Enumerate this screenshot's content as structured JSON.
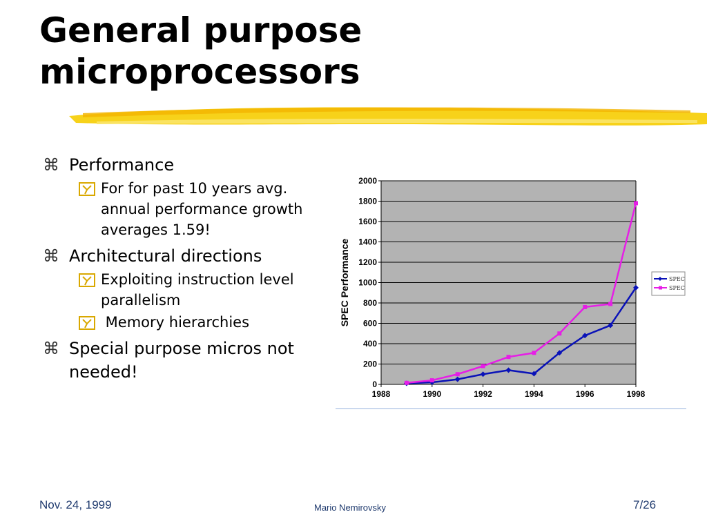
{
  "title": {
    "line1": "General purpose",
    "line2": "microprocessors"
  },
  "bullets": [
    {
      "text": "Performance",
      "subs": [
        {
          "text": "For for past 10 years avg. annual performance growth averages 1.59!"
        }
      ]
    },
    {
      "text": "Architectural directions",
      "subs": [
        {
          "text": "Exploiting instruction level parallelism"
        },
        {
          "text": " Memory hierarchies"
        }
      ]
    },
    {
      "text": "Special purpose micros not needed!",
      "subs": []
    }
  ],
  "icons": {
    "level1": "command-key-icon",
    "level2": "checkbox-y-icon"
  },
  "chart_data": {
    "type": "line",
    "title": "",
    "xlabel": "",
    "ylabel": "SPEC Performance",
    "xlim": [
      1988,
      1998
    ],
    "ylim": [
      0,
      2000
    ],
    "x_ticks": [
      "1988",
      "1990",
      "1992",
      "1994",
      "1996",
      "1998"
    ],
    "y_ticks": [
      "0",
      "200",
      "400",
      "600",
      "800",
      "1000",
      "1200",
      "1400",
      "1600",
      "1800",
      "2000"
    ],
    "grid": true,
    "legend_position": "right",
    "series": [
      {
        "name": "SPEC",
        "color": "#0a12b8",
        "x": [
          1989,
          1990,
          1991,
          1992,
          1993,
          1994,
          1995,
          1996,
          1997,
          1998
        ],
        "values": [
          10,
          20,
          50,
          100,
          140,
          105,
          310,
          480,
          580,
          950
        ]
      },
      {
        "name": "SPEC",
        "color": "#e61ee6",
        "x": [
          1989,
          1990,
          1991,
          1992,
          1993,
          1994,
          1995,
          1996,
          1997,
          1998
        ],
        "values": [
          15,
          40,
          100,
          180,
          270,
          310,
          500,
          760,
          790,
          1780
        ]
      }
    ]
  },
  "footer": {
    "date": "Nov. 24, 1999",
    "author": "Mario Nemirovsky",
    "page": "7/26"
  }
}
